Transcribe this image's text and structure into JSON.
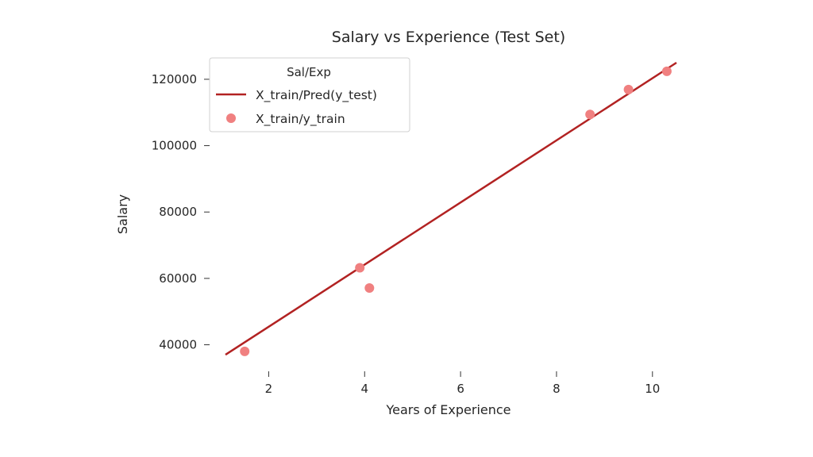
{
  "chart_data": {
    "type": "scatter",
    "title": "Salary vs Experience (Test Set)",
    "xlabel": "Years of Experience",
    "ylabel": "Salary",
    "xlim": [
      1,
      10.5
    ],
    "ylim": [
      32000,
      125000
    ],
    "xticks": [
      2,
      4,
      6,
      8,
      10
    ],
    "yticks": [
      40000,
      60000,
      80000,
      100000,
      120000
    ],
    "grid": false,
    "legend": {
      "title": "Sal/Exp",
      "position": "upper-left",
      "entries": [
        {
          "label": "X_train/Pred(y_test)",
          "kind": "line"
        },
        {
          "label": "X_train/y_train",
          "kind": "marker"
        }
      ]
    },
    "series": [
      {
        "name": "X_train/Pred(y_test)",
        "kind": "line",
        "color": "#b22222",
        "points": [
          {
            "x": 1.1,
            "y": 37000
          },
          {
            "x": 10.5,
            "y": 125000
          }
        ]
      },
      {
        "name": "X_train/y_train",
        "kind": "scatter",
        "color": "#f08080",
        "points": [
          {
            "x": 1.5,
            "y": 38000
          },
          {
            "x": 3.9,
            "y": 63200
          },
          {
            "x": 4.1,
            "y": 57100
          },
          {
            "x": 8.7,
            "y": 109400
          },
          {
            "x": 9.5,
            "y": 116900
          },
          {
            "x": 10.3,
            "y": 122400
          }
        ]
      }
    ]
  }
}
